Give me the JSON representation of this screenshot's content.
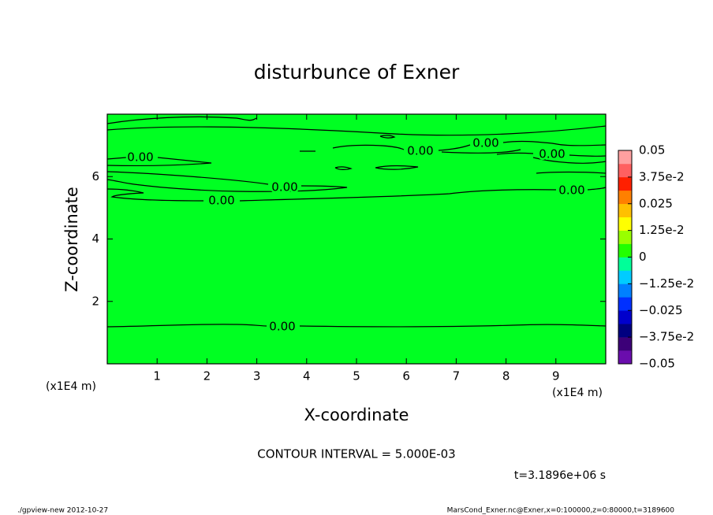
{
  "chart_data": {
    "type": "contour",
    "title": "disturbunce of Exner",
    "xlabel": "X-coordinate",
    "ylabel": "Z-coordinate",
    "x_unit_label": "(x1E4 m)",
    "xlim": [
      0,
      10
    ],
    "xticks": [
      1,
      2,
      3,
      4,
      5,
      6,
      7,
      8,
      9
    ],
    "ylim": [
      0,
      8
    ],
    "yticks": [
      2,
      4,
      6
    ],
    "fill_color": "#00ff22",
    "contour_labels": [
      "0.00",
      "0.00",
      "0.00",
      "0.00",
      "0.00",
      "0.00",
      "0.00",
      "0.00"
    ],
    "colorbar": {
      "lim": [
        -0.05,
        0.05
      ],
      "ticks": [
        {
          "value": 0.05,
          "label": "0.05"
        },
        {
          "value": 0.0375,
          "label": "3.75e-2"
        },
        {
          "value": 0.025,
          "label": "0.025"
        },
        {
          "value": 0.0125,
          "label": "1.25e-2"
        },
        0,
        {
          "value": -0.0125,
          "label": "−1.25e-2"
        },
        {
          "value": -0.025,
          "label": "−0.025"
        },
        {
          "value": -0.0375,
          "label": "−3.75e-2"
        },
        {
          "value": -0.05,
          "label": "−0.05"
        }
      ],
      "colors": [
        "#6a0dad",
        "#3c0078",
        "#000080",
        "#0000cc",
        "#0030ff",
        "#0080ff",
        "#00ccff",
        "#00ff99",
        "#22ff00",
        "#99ff00",
        "#ffff00",
        "#ffc000",
        "#ff8000",
        "#ff2000",
        "#ff6060",
        "#ffa0a0"
      ]
    },
    "contour_interval": "CONTOUR INTERVAL = 5.000E-03",
    "time": "t=3.1896e+06 s",
    "footer_left": "./gpview-new  2012-10-27",
    "footer_right": "MarsCond_Exner.nc@Exner,x=0:100000,z=0:80000,t=3189600"
  }
}
